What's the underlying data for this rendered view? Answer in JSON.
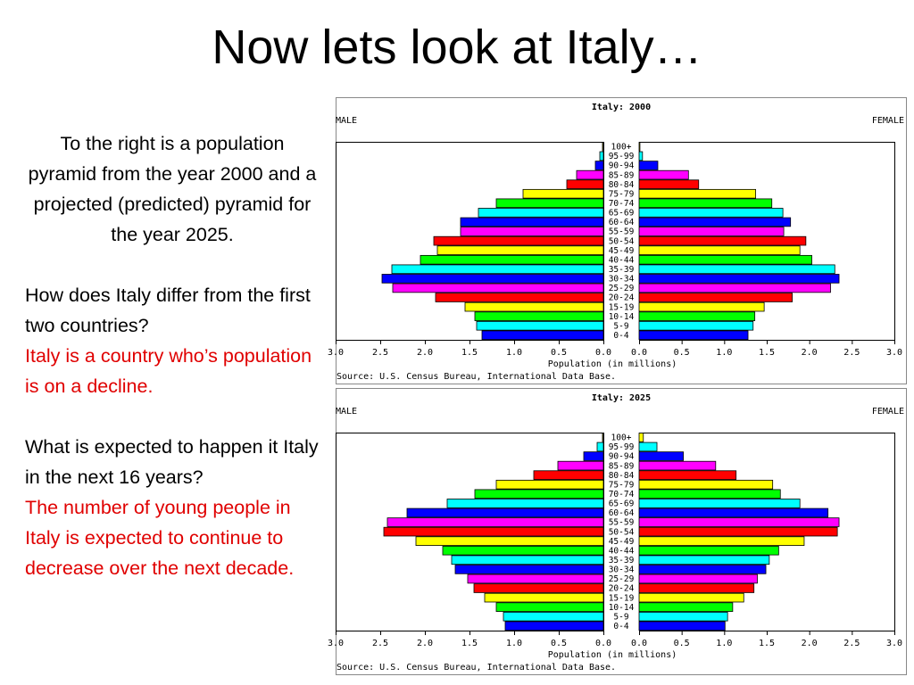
{
  "title": "Now lets look at Italy…",
  "text": {
    "intro": "To the right is a population pyramid from the year 2000 and a projected (predicted) pyramid for the year 2025.",
    "q1": "How does Italy differ from the first two countries?",
    "a1": "Italy is a country who’s population is on a decline.",
    "q2": "What is expected to happen it Italy in the next 16 years?",
    "a2": "The number of young people in Italy is expected to continue to decrease over the next decade."
  },
  "chart_data": [
    {
      "type": "bar",
      "title": "Italy: 2000",
      "left_label": "MALE",
      "right_label": "FEMALE",
      "xlabel": "Population (in millions)",
      "source": "Source: U.S. Census Bureau, International Data Base.",
      "xlim": [
        0,
        3.0
      ],
      "ticks": [
        "3.0",
        "2.5",
        "2.0",
        "1.5",
        "1.0",
        "0.5",
        "0.0",
        "0.0",
        "0.5",
        "1.0",
        "1.5",
        "2.0",
        "2.5",
        "3.0"
      ],
      "categories": [
        "100+",
        "95-99",
        "90-94",
        "85-89",
        "80-84",
        "75-79",
        "70-74",
        "65-69",
        "60-64",
        "55-59",
        "50-54",
        "45-49",
        "40-44",
        "35-39",
        "30-34",
        "25-29",
        "20-24",
        "15-19",
        "10-14",
        "5-9",
        "0-4"
      ],
      "colors": [
        "#ffff00",
        "#00ffff",
        "#0000ff",
        "#ff00ff",
        "#ff0000",
        "#ffff00",
        "#00ff00",
        "#00ffff",
        "#0000ff",
        "#ff00ff",
        "#ff0000",
        "#ffff00",
        "#00ff00",
        "#00ffff",
        "#0000ff",
        "#ff00ff",
        "#ff0000",
        "#ffff00",
        "#00ff00",
        "#00ffff",
        "#0000ff"
      ],
      "series": [
        {
          "name": "MALE",
          "values": [
            0.01,
            0.04,
            0.09,
            0.3,
            0.41,
            0.9,
            1.2,
            1.4,
            1.6,
            1.6,
            1.9,
            1.86,
            2.05,
            2.37,
            2.48,
            2.36,
            1.88,
            1.55,
            1.44,
            1.42,
            1.36
          ]
        },
        {
          "name": "FEMALE",
          "values": [
            0.01,
            0.04,
            0.22,
            0.58,
            0.7,
            1.37,
            1.56,
            1.69,
            1.78,
            1.7,
            1.96,
            1.89,
            2.03,
            2.3,
            2.35,
            2.25,
            1.8,
            1.47,
            1.36,
            1.34,
            1.28
          ]
        }
      ]
    },
    {
      "type": "bar",
      "title": "Italy: 2025",
      "left_label": "MALE",
      "right_label": "FEMALE",
      "xlabel": "Population (in millions)",
      "source": "Source: U.S. Census Bureau, International Data Base.",
      "xlim": [
        0,
        3.0
      ],
      "ticks": [
        "3.0",
        "2.5",
        "2.0",
        "1.5",
        "1.0",
        "0.5",
        "0.0",
        "0.0",
        "0.5",
        "1.0",
        "1.5",
        "2.0",
        "2.5",
        "3.0"
      ],
      "categories": [
        "100+",
        "95-99",
        "90-94",
        "85-89",
        "80-84",
        "75-79",
        "70-74",
        "65-69",
        "60-64",
        "55-59",
        "50-54",
        "45-49",
        "40-44",
        "35-39",
        "30-34",
        "25-29",
        "20-24",
        "15-19",
        "10-14",
        "5-9",
        "0-4"
      ],
      "colors": [
        "#ffff00",
        "#00ffff",
        "#0000ff",
        "#ff00ff",
        "#ff0000",
        "#ffff00",
        "#00ff00",
        "#00ffff",
        "#0000ff",
        "#ff00ff",
        "#ff0000",
        "#ffff00",
        "#00ff00",
        "#00ffff",
        "#0000ff",
        "#ff00ff",
        "#ff0000",
        "#ffff00",
        "#00ff00",
        "#00ffff",
        "#0000ff"
      ],
      "series": [
        {
          "name": "MALE",
          "values": [
            0.01,
            0.07,
            0.22,
            0.51,
            0.78,
            1.2,
            1.44,
            1.75,
            2.2,
            2.42,
            2.46,
            2.1,
            1.8,
            1.7,
            1.66,
            1.52,
            1.45,
            1.33,
            1.2,
            1.12,
            1.1
          ]
        },
        {
          "name": "FEMALE",
          "values": [
            0.05,
            0.21,
            0.52,
            0.9,
            1.14,
            1.57,
            1.66,
            1.89,
            2.22,
            2.35,
            2.33,
            1.94,
            1.64,
            1.53,
            1.49,
            1.39,
            1.35,
            1.23,
            1.1,
            1.04,
            1.01
          ]
        }
      ]
    }
  ]
}
